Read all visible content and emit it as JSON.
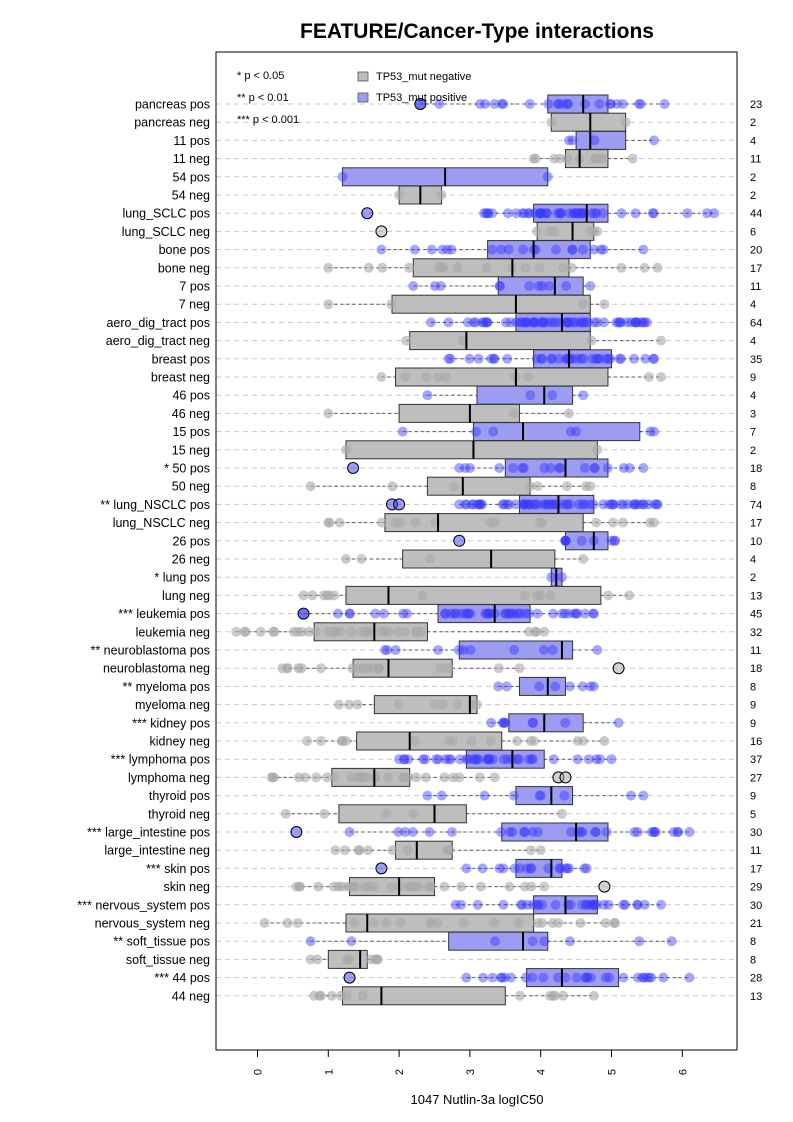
{
  "chart_data": {
    "type": "box",
    "title": "FEATURE/Cancer-Type interactions",
    "xlabel": "1047 Nutlin-3a logIC50",
    "xlim": [
      -0.6,
      6.8
    ],
    "xticks": [
      0,
      1,
      2,
      3,
      4,
      5,
      6
    ],
    "grid": true,
    "legend_position": "top-left",
    "significance_key": [
      "* p < 0.05",
      "** p < 0.01",
      "*** p < 0.001"
    ],
    "series": [
      {
        "name": "TP53_mut negative",
        "color": "#b3b3b3"
      },
      {
        "name": "TP53_mut positive",
        "color": "#7b7bf2"
      }
    ],
    "colors": {
      "negative_box": "#bebebe",
      "positive_box": "#9c9cf2",
      "negative_point": "#a8a8a8",
      "positive_point": "#3a3aff"
    },
    "rows": [
      {
        "label": "pancreas pos",
        "status": "pos",
        "n": 23,
        "q1": 4.1,
        "median": 4.6,
        "q3": 4.95,
        "wmin": 2.3,
        "wmax": 5.75,
        "outliers": [
          2.3
        ]
      },
      {
        "label": "pancreas neg",
        "status": "neg",
        "n": 2,
        "q1": 4.15,
        "median": 4.7,
        "q3": 5.2,
        "wmin": 4.15,
        "wmax": 5.2,
        "outliers": []
      },
      {
        "label": "11 pos",
        "status": "pos",
        "n": 4,
        "q1": 4.5,
        "median": 4.7,
        "q3": 5.2,
        "wmin": 4.4,
        "wmax": 5.6,
        "outliers": []
      },
      {
        "label": "11 neg",
        "status": "neg",
        "n": 11,
        "q1": 4.35,
        "median": 4.55,
        "q3": 4.95,
        "wmin": 3.9,
        "wmax": 5.3,
        "outliers": []
      },
      {
        "label": "54 pos",
        "status": "pos",
        "n": 2,
        "q1": 1.2,
        "median": 2.65,
        "q3": 4.1,
        "wmin": 1.2,
        "wmax": 4.1,
        "outliers": []
      },
      {
        "label": "54 neg",
        "status": "neg",
        "n": 2,
        "q1": 2.0,
        "median": 2.3,
        "q3": 2.6,
        "wmin": 2.0,
        "wmax": 2.6,
        "outliers": []
      },
      {
        "label": "lung_SCLC pos",
        "status": "pos",
        "n": 44,
        "q1": 3.9,
        "median": 4.65,
        "q3": 4.95,
        "wmin": 3.2,
        "wmax": 6.45,
        "outliers": [
          1.55
        ]
      },
      {
        "label": "lung_SCLC neg",
        "status": "neg",
        "n": 6,
        "q1": 3.95,
        "median": 4.45,
        "q3": 4.75,
        "wmin": 3.95,
        "wmax": 4.8,
        "outliers": [
          1.75
        ]
      },
      {
        "label": "bone pos",
        "status": "pos",
        "n": 20,
        "q1": 3.25,
        "median": 3.9,
        "q3": 4.7,
        "wmin": 1.75,
        "wmax": 5.45,
        "outliers": []
      },
      {
        "label": "bone neg",
        "status": "neg",
        "n": 17,
        "q1": 2.2,
        "median": 3.6,
        "q3": 4.4,
        "wmin": 1.0,
        "wmax": 5.65,
        "outliers": []
      },
      {
        "label": "7 pos",
        "status": "pos",
        "n": 11,
        "q1": 3.4,
        "median": 4.2,
        "q3": 4.6,
        "wmin": 2.2,
        "wmax": 4.7,
        "outliers": []
      },
      {
        "label": "7 neg",
        "status": "neg",
        "n": 4,
        "q1": 1.9,
        "median": 3.65,
        "q3": 4.7,
        "wmin": 1.0,
        "wmax": 4.9,
        "outliers": []
      },
      {
        "label": "aero_dig_tract pos",
        "status": "pos",
        "n": 64,
        "q1": 3.65,
        "median": 4.3,
        "q3": 4.7,
        "wmin": 2.45,
        "wmax": 5.5,
        "outliers": []
      },
      {
        "label": "aero_dig_tract neg",
        "status": "neg",
        "n": 4,
        "q1": 2.15,
        "median": 2.95,
        "q3": 4.7,
        "wmin": 2.1,
        "wmax": 5.7,
        "outliers": []
      },
      {
        "label": "breast pos",
        "status": "pos",
        "n": 35,
        "q1": 3.9,
        "median": 4.4,
        "q3": 5.0,
        "wmin": 2.7,
        "wmax": 5.6,
        "outliers": []
      },
      {
        "label": "breast neg",
        "status": "neg",
        "n": 9,
        "q1": 1.95,
        "median": 3.65,
        "q3": 4.95,
        "wmin": 1.75,
        "wmax": 5.7,
        "outliers": []
      },
      {
        "label": "46 pos",
        "status": "pos",
        "n": 4,
        "q1": 3.1,
        "median": 4.05,
        "q3": 4.45,
        "wmin": 2.4,
        "wmax": 4.6,
        "outliers": []
      },
      {
        "label": "46 neg",
        "status": "neg",
        "n": 3,
        "q1": 2.0,
        "median": 3.0,
        "q3": 3.7,
        "wmin": 1.0,
        "wmax": 4.4,
        "outliers": []
      },
      {
        "label": "15 pos",
        "status": "pos",
        "n": 7,
        "q1": 3.05,
        "median": 3.75,
        "q3": 5.4,
        "wmin": 2.05,
        "wmax": 5.6,
        "outliers": []
      },
      {
        "label": "15 neg",
        "status": "neg",
        "n": 2,
        "q1": 1.25,
        "median": 3.05,
        "q3": 4.8,
        "wmin": 1.25,
        "wmax": 4.8,
        "outliers": []
      },
      {
        "label": "* 50 pos",
        "status": "pos",
        "n": 18,
        "q1": 3.5,
        "median": 4.35,
        "q3": 4.95,
        "wmin": 2.85,
        "wmax": 5.45,
        "outliers": [
          1.35
        ]
      },
      {
        "label": "50 neg",
        "status": "neg",
        "n": 8,
        "q1": 2.4,
        "median": 2.9,
        "q3": 3.85,
        "wmin": 0.75,
        "wmax": 4.7,
        "outliers": []
      },
      {
        "label": "** lung_NSCLC pos",
        "status": "pos",
        "n": 74,
        "q1": 3.7,
        "median": 4.25,
        "q3": 4.75,
        "wmin": 2.85,
        "wmax": 5.65,
        "outliers": [
          1.9,
          2.0
        ]
      },
      {
        "label": "lung_NSCLC neg",
        "status": "neg",
        "n": 17,
        "q1": 1.8,
        "median": 2.55,
        "q3": 4.6,
        "wmin": 1.0,
        "wmax": 5.6,
        "outliers": []
      },
      {
        "label": "26 pos",
        "status": "pos",
        "n": 10,
        "q1": 4.35,
        "median": 4.75,
        "q3": 4.95,
        "wmin": 4.35,
        "wmax": 5.05,
        "outliers": [
          2.85
        ]
      },
      {
        "label": "26 neg",
        "status": "neg",
        "n": 4,
        "q1": 2.05,
        "median": 3.3,
        "q3": 4.2,
        "wmin": 1.25,
        "wmax": 4.6,
        "outliers": []
      },
      {
        "label": "* lung pos",
        "status": "pos",
        "n": 2,
        "q1": 4.15,
        "median": 4.22,
        "q3": 4.3,
        "wmin": 4.15,
        "wmax": 4.3,
        "outliers": []
      },
      {
        "label": "lung neg",
        "status": "neg",
        "n": 13,
        "q1": 1.25,
        "median": 1.85,
        "q3": 4.85,
        "wmin": 0.65,
        "wmax": 5.25,
        "outliers": []
      },
      {
        "label": "*** leukemia pos",
        "status": "pos",
        "n": 45,
        "q1": 2.55,
        "median": 3.35,
        "q3": 3.85,
        "wmin": 0.65,
        "wmax": 4.75,
        "outliers": [
          0.65
        ]
      },
      {
        "label": "leukemia neg",
        "status": "neg",
        "n": 32,
        "q1": 0.8,
        "median": 1.65,
        "q3": 2.4,
        "wmin": -0.3,
        "wmax": 4.05,
        "outliers": []
      },
      {
        "label": "** neuroblastoma pos",
        "status": "pos",
        "n": 11,
        "q1": 2.85,
        "median": 4.3,
        "q3": 4.45,
        "wmin": 1.8,
        "wmax": 4.8,
        "outliers": []
      },
      {
        "label": "neuroblastoma neg",
        "status": "neg",
        "n": 18,
        "q1": 1.35,
        "median": 1.85,
        "q3": 2.75,
        "wmin": 0.35,
        "wmax": 3.7,
        "outliers": [
          5.1
        ]
      },
      {
        "label": "** myeloma pos",
        "status": "pos",
        "n": 8,
        "q1": 3.7,
        "median": 4.1,
        "q3": 4.35,
        "wmin": 3.4,
        "wmax": 4.75,
        "outliers": []
      },
      {
        "label": "myeloma neg",
        "status": "neg",
        "n": 9,
        "q1": 1.65,
        "median": 3.0,
        "q3": 3.1,
        "wmin": 1.15,
        "wmax": 3.1,
        "outliers": []
      },
      {
        "label": "*** kidney pos",
        "status": "pos",
        "n": 9,
        "q1": 3.55,
        "median": 4.05,
        "q3": 4.6,
        "wmin": 3.3,
        "wmax": 5.1,
        "outliers": []
      },
      {
        "label": "kidney neg",
        "status": "neg",
        "n": 16,
        "q1": 1.4,
        "median": 2.15,
        "q3": 3.45,
        "wmin": 0.7,
        "wmax": 4.9,
        "outliers": []
      },
      {
        "label": "*** lymphoma pos",
        "status": "pos",
        "n": 37,
        "q1": 2.95,
        "median": 3.6,
        "q3": 4.05,
        "wmin": 2.0,
        "wmax": 5.0,
        "outliers": []
      },
      {
        "label": "lymphoma neg",
        "status": "neg",
        "n": 27,
        "q1": 1.05,
        "median": 1.65,
        "q3": 2.15,
        "wmin": 0.2,
        "wmax": 3.35,
        "outliers": [
          4.25,
          4.35
        ]
      },
      {
        "label": "thyroid pos",
        "status": "pos",
        "n": 9,
        "q1": 3.65,
        "median": 4.15,
        "q3": 4.45,
        "wmin": 2.4,
        "wmax": 5.45,
        "outliers": []
      },
      {
        "label": "thyroid neg",
        "status": "neg",
        "n": 5,
        "q1": 1.15,
        "median": 2.5,
        "q3": 2.95,
        "wmin": 0.4,
        "wmax": 4.3,
        "outliers": []
      },
      {
        "label": "*** large_intestine pos",
        "status": "pos",
        "n": 30,
        "q1": 3.45,
        "median": 4.5,
        "q3": 4.95,
        "wmin": 1.3,
        "wmax": 6.1,
        "outliers": [
          0.55
        ]
      },
      {
        "label": "large_intestine neg",
        "status": "neg",
        "n": 11,
        "q1": 1.95,
        "median": 2.25,
        "q3": 2.75,
        "wmin": 1.1,
        "wmax": 4.0,
        "outliers": []
      },
      {
        "label": "*** skin pos",
        "status": "pos",
        "n": 17,
        "q1": 3.65,
        "median": 4.15,
        "q3": 4.3,
        "wmin": 2.95,
        "wmax": 4.65,
        "outliers": [
          1.75
        ]
      },
      {
        "label": "skin neg",
        "status": "neg",
        "n": 29,
        "q1": 1.3,
        "median": 2.0,
        "q3": 2.5,
        "wmin": 0.55,
        "wmax": 4.05,
        "outliers": [
          4.9
        ]
      },
      {
        "label": "*** nervous_system pos",
        "status": "pos",
        "n": 30,
        "q1": 3.9,
        "median": 4.35,
        "q3": 4.8,
        "wmin": 2.8,
        "wmax": 5.7,
        "outliers": []
      },
      {
        "label": "nervous_system neg",
        "status": "neg",
        "n": 21,
        "q1": 1.25,
        "median": 1.55,
        "q3": 3.9,
        "wmin": 0.1,
        "wmax": 5.05,
        "outliers": []
      },
      {
        "label": "** soft_tissue pos",
        "status": "pos",
        "n": 8,
        "q1": 2.7,
        "median": 3.75,
        "q3": 4.1,
        "wmin": 0.75,
        "wmax": 5.85,
        "outliers": []
      },
      {
        "label": "soft_tissue neg",
        "status": "neg",
        "n": 8,
        "q1": 1.0,
        "median": 1.45,
        "q3": 1.55,
        "wmin": 0.75,
        "wmax": 1.7,
        "outliers": []
      },
      {
        "label": "*** 44 pos",
        "status": "pos",
        "n": 28,
        "q1": 3.8,
        "median": 4.3,
        "q3": 5.1,
        "wmin": 2.95,
        "wmax": 6.1,
        "outliers": [
          1.3
        ]
      },
      {
        "label": "44 neg",
        "status": "neg",
        "n": 13,
        "q1": 1.2,
        "median": 1.75,
        "q3": 3.5,
        "wmin": 0.8,
        "wmax": 4.75,
        "outliers": []
      }
    ]
  }
}
